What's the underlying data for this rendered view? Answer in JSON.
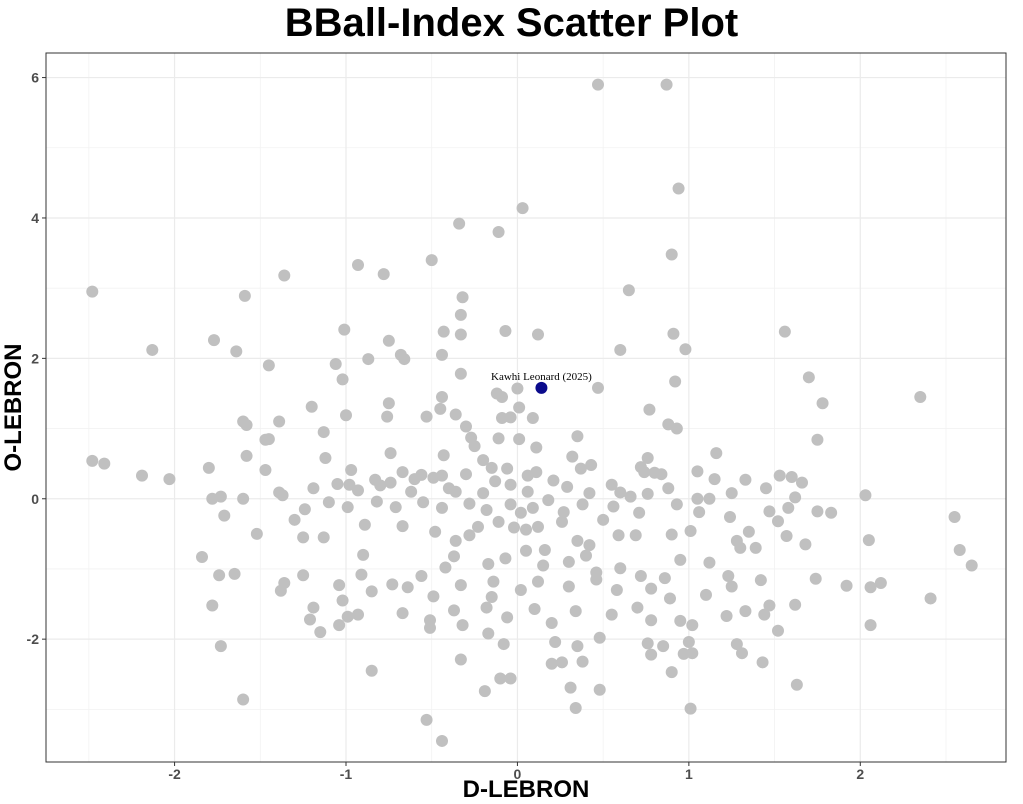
{
  "chart_data": {
    "type": "scatter",
    "title": "BBall-Index Scatter Plot",
    "xlabel": "D-LEBRON",
    "ylabel": "O-LEBRON",
    "xlim": [
      -2.75,
      2.85
    ],
    "ylim": [
      -3.75,
      6.35
    ],
    "xticks": [
      -2,
      -1,
      0,
      1,
      2
    ],
    "yticks": [
      -2,
      0,
      2,
      4,
      6
    ],
    "grid": true,
    "colors": {
      "points": "#c0c0c0",
      "highlight": "#0b0b8c",
      "grid": "#ebebeb",
      "panel_border": "#333333"
    },
    "highlight": {
      "label": "Kawhi Leonard (2025)",
      "x": 0.14,
      "y": 1.58
    },
    "points": [
      [
        0.47,
        5.9
      ],
      [
        0.87,
        5.9
      ],
      [
        0.94,
        4.42
      ],
      [
        0.03,
        4.14
      ],
      [
        -0.34,
        3.92
      ],
      [
        -0.11,
        3.8
      ],
      [
        0.9,
        3.48
      ],
      [
        -0.5,
        3.4
      ],
      [
        -0.93,
        3.33
      ],
      [
        -1.36,
        3.18
      ],
      [
        -0.78,
        3.2
      ],
      [
        -2.48,
        2.95
      ],
      [
        -1.59,
        2.89
      ],
      [
        0.65,
        2.97
      ],
      [
        -0.32,
        2.87
      ],
      [
        -0.33,
        2.62
      ],
      [
        -1.77,
        2.26
      ],
      [
        -2.13,
        2.12
      ],
      [
        -1.64,
        2.1
      ],
      [
        -1.01,
        2.41
      ],
      [
        -0.43,
        2.38
      ],
      [
        -0.33,
        2.34
      ],
      [
        -0.07,
        2.39
      ],
      [
        0.12,
        2.34
      ],
      [
        0.91,
        2.35
      ],
      [
        1.56,
        2.38
      ],
      [
        -0.75,
        2.25
      ],
      [
        -0.68,
        2.05
      ],
      [
        -0.66,
        1.99
      ],
      [
        -0.44,
        2.05
      ],
      [
        -0.87,
        1.99
      ],
      [
        -1.06,
        1.92
      ],
      [
        -1.45,
        1.9
      ],
      [
        0.6,
        2.12
      ],
      [
        0.98,
        2.13
      ],
      [
        -0.33,
        1.78
      ],
      [
        -1.02,
        1.7
      ],
      [
        -0.12,
        1.5
      ],
      [
        -0.09,
        1.45
      ],
      [
        0.0,
        1.57
      ],
      [
        0.47,
        1.58
      ],
      [
        0.92,
        1.67
      ],
      [
        1.7,
        1.73
      ],
      [
        1.78,
        1.36
      ],
      [
        2.35,
        1.45
      ],
      [
        -0.44,
        1.45
      ],
      [
        -0.45,
        1.28
      ],
      [
        -0.36,
        1.2
      ],
      [
        -0.75,
        1.36
      ],
      [
        -1.2,
        1.31
      ],
      [
        -0.53,
        1.17
      ],
      [
        -0.76,
        1.17
      ],
      [
        -1.0,
        1.19
      ],
      [
        -1.39,
        1.1
      ],
      [
        -1.6,
        1.1
      ],
      [
        -1.58,
        1.05
      ],
      [
        -0.09,
        1.15
      ],
      [
        -0.04,
        1.16
      ],
      [
        0.01,
        1.3
      ],
      [
        0.09,
        1.15
      ],
      [
        0.77,
        1.27
      ],
      [
        0.88,
        1.06
      ],
      [
        0.93,
        1.0
      ],
      [
        0.35,
        0.89
      ],
      [
        -1.47,
        0.84
      ],
      [
        -1.45,
        0.85
      ],
      [
        -1.13,
        0.95
      ],
      [
        -0.3,
        1.03
      ],
      [
        -0.27,
        0.87
      ],
      [
        -0.25,
        0.75
      ],
      [
        -0.11,
        0.86
      ],
      [
        0.01,
        0.85
      ],
      [
        0.11,
        0.73
      ],
      [
        1.75,
        0.84
      ],
      [
        -0.43,
        0.62
      ],
      [
        -1.58,
        0.61
      ],
      [
        -1.12,
        0.58
      ],
      [
        -0.74,
        0.65
      ],
      [
        0.76,
        0.58
      ],
      [
        1.16,
        0.65
      ],
      [
        -2.48,
        0.54
      ],
      [
        -2.41,
        0.5
      ],
      [
        -2.19,
        0.33
      ],
      [
        -2.03,
        0.28
      ],
      [
        -1.8,
        0.44
      ],
      [
        -1.47,
        0.41
      ],
      [
        -0.97,
        0.41
      ],
      [
        -0.67,
        0.38
      ],
      [
        -0.56,
        0.34
      ],
      [
        -0.49,
        0.3
      ],
      [
        -0.44,
        0.33
      ],
      [
        -0.3,
        0.35
      ],
      [
        -0.15,
        0.44
      ],
      [
        -0.06,
        0.43
      ],
      [
        0.06,
        0.33
      ],
      [
        0.11,
        0.38
      ],
      [
        0.37,
        0.43
      ],
      [
        0.43,
        0.48
      ],
      [
        0.72,
        0.45
      ],
      [
        0.74,
        0.38
      ],
      [
        0.8,
        0.37
      ],
      [
        0.84,
        0.35
      ],
      [
        1.05,
        0.39
      ],
      [
        1.15,
        0.28
      ],
      [
        1.33,
        0.27
      ],
      [
        1.53,
        0.33
      ],
      [
        1.6,
        0.31
      ],
      [
        1.66,
        0.23
      ],
      [
        -1.78,
        0.0
      ],
      [
        -1.73,
        0.03
      ],
      [
        -1.39,
        0.09
      ],
      [
        -1.19,
        0.15
      ],
      [
        -1.05,
        0.21
      ],
      [
        -0.98,
        0.2
      ],
      [
        -0.93,
        0.12
      ],
      [
        -0.83,
        0.27
      ],
      [
        -0.8,
        0.19
      ],
      [
        -0.74,
        0.23
      ],
      [
        -0.6,
        0.28
      ],
      [
        -0.4,
        0.15
      ],
      [
        -0.36,
        0.1
      ],
      [
        -0.2,
        0.08
      ],
      [
        -0.13,
        0.25
      ],
      [
        -0.04,
        0.2
      ],
      [
        0.06,
        0.1
      ],
      [
        0.21,
        0.26
      ],
      [
        0.29,
        0.17
      ],
      [
        0.42,
        0.08
      ],
      [
        0.6,
        0.09
      ],
      [
        0.66,
        0.03
      ],
      [
        0.76,
        0.07
      ],
      [
        0.88,
        0.15
      ],
      [
        1.12,
        0.0
      ],
      [
        1.25,
        0.08
      ],
      [
        1.62,
        0.02
      ],
      [
        1.75,
        -0.18
      ],
      [
        1.83,
        -0.2
      ],
      [
        2.03,
        0.05
      ],
      [
        -1.6,
        0.0
      ],
      [
        -1.24,
        -0.15
      ],
      [
        -1.1,
        -0.05
      ],
      [
        -0.99,
        -0.12
      ],
      [
        -0.82,
        -0.04
      ],
      [
        -0.71,
        -0.12
      ],
      [
        -0.55,
        -0.05
      ],
      [
        -0.44,
        -0.13
      ],
      [
        -0.28,
        -0.07
      ],
      [
        -0.18,
        -0.16
      ],
      [
        -0.04,
        -0.08
      ],
      [
        0.02,
        -0.2
      ],
      [
        0.09,
        -0.13
      ],
      [
        0.18,
        -0.02
      ],
      [
        0.27,
        -0.19
      ],
      [
        0.38,
        -0.08
      ],
      [
        0.56,
        -0.11
      ],
      [
        0.71,
        -0.2
      ],
      [
        0.93,
        -0.08
      ],
      [
        1.06,
        -0.19
      ],
      [
        1.24,
        -0.26
      ],
      [
        1.47,
        -0.18
      ],
      [
        1.52,
        -0.32
      ],
      [
        1.58,
        -0.13
      ],
      [
        2.55,
        -0.26
      ],
      [
        -1.71,
        -0.24
      ],
      [
        -1.52,
        -0.5
      ],
      [
        -1.25,
        -0.55
      ],
      [
        -1.13,
        -0.55
      ],
      [
        -0.89,
        -0.37
      ],
      [
        -0.67,
        -0.39
      ],
      [
        -0.48,
        -0.47
      ],
      [
        -0.36,
        -0.6
      ],
      [
        -0.23,
        -0.4
      ],
      [
        -0.11,
        -0.33
      ],
      [
        -0.02,
        -0.41
      ],
      [
        0.05,
        -0.44
      ],
      [
        0.12,
        -0.4
      ],
      [
        0.26,
        -0.33
      ],
      [
        0.35,
        -0.6
      ],
      [
        0.42,
        -0.66
      ],
      [
        0.59,
        -0.52
      ],
      [
        0.69,
        -0.52
      ],
      [
        0.9,
        -0.51
      ],
      [
        1.01,
        -0.46
      ],
      [
        1.28,
        -0.6
      ],
      [
        1.35,
        -0.47
      ],
      [
        1.57,
        -0.53
      ],
      [
        1.68,
        -0.65
      ],
      [
        2.05,
        -0.59
      ],
      [
        2.58,
        -0.73
      ],
      [
        2.65,
        -0.95
      ],
      [
        -1.84,
        -0.83
      ],
      [
        -1.65,
        -1.07
      ],
      [
        -1.36,
        -1.2
      ],
      [
        -1.25,
        -1.09
      ],
      [
        -1.04,
        -1.23
      ],
      [
        -0.91,
        -1.08
      ],
      [
        -0.73,
        -1.22
      ],
      [
        -0.56,
        -1.1
      ],
      [
        -0.42,
        -0.98
      ],
      [
        -0.37,
        -0.82
      ],
      [
        -0.17,
        -0.93
      ],
      [
        -0.07,
        -0.85
      ],
      [
        0.05,
        -0.74
      ],
      [
        0.16,
        -0.73
      ],
      [
        0.3,
        -0.9
      ],
      [
        0.4,
        -0.81
      ],
      [
        0.46,
        -1.05
      ],
      [
        0.6,
        -0.99
      ],
      [
        0.72,
        -1.1
      ],
      [
        0.86,
        -1.13
      ],
      [
        0.95,
        -0.87
      ],
      [
        1.12,
        -0.91
      ],
      [
        1.23,
        -1.1
      ],
      [
        1.39,
        -0.7
      ],
      [
        1.42,
        -1.16
      ],
      [
        1.74,
        -1.14
      ],
      [
        1.92,
        -1.24
      ],
      [
        -1.74,
        -1.09
      ],
      [
        -1.78,
        -1.52
      ],
      [
        -1.38,
        -1.31
      ],
      [
        -1.19,
        -1.55
      ],
      [
        -1.02,
        -1.45
      ],
      [
        -0.85,
        -1.32
      ],
      [
        -0.64,
        -1.26
      ],
      [
        -0.49,
        -1.39
      ],
      [
        -0.33,
        -1.23
      ],
      [
        -0.14,
        -1.18
      ],
      [
        0.02,
        -1.3
      ],
      [
        0.12,
        -1.18
      ],
      [
        0.3,
        -1.25
      ],
      [
        0.46,
        -1.15
      ],
      [
        0.58,
        -1.3
      ],
      [
        0.78,
        -1.28
      ],
      [
        0.89,
        -1.42
      ],
      [
        1.1,
        -1.37
      ],
      [
        1.25,
        -1.25
      ],
      [
        1.47,
        -1.52
      ],
      [
        1.62,
        -1.51
      ],
      [
        2.06,
        -1.26
      ],
      [
        2.12,
        -1.2
      ],
      [
        2.41,
        -1.42
      ],
      [
        -1.21,
        -1.72
      ],
      [
        -1.04,
        -1.8
      ],
      [
        -0.99,
        -1.68
      ],
      [
        -0.67,
        -1.63
      ],
      [
        -0.51,
        -1.73
      ],
      [
        -0.37,
        -1.59
      ],
      [
        -0.18,
        -1.55
      ],
      [
        -0.06,
        -1.69
      ],
      [
        0.1,
        -1.57
      ],
      [
        0.2,
        -1.77
      ],
      [
        0.34,
        -1.6
      ],
      [
        0.55,
        -1.65
      ],
      [
        0.78,
        -1.73
      ],
      [
        0.95,
        -1.74
      ],
      [
        1.02,
        -1.8
      ],
      [
        1.22,
        -1.67
      ],
      [
        1.33,
        -1.6
      ],
      [
        1.44,
        -1.65
      ],
      [
        2.06,
        -1.8
      ],
      [
        -1.73,
        -2.1
      ],
      [
        -1.15,
        -1.9
      ],
      [
        -0.93,
        -1.65
      ],
      [
        -0.51,
        -1.84
      ],
      [
        -0.32,
        -1.8
      ],
      [
        -0.17,
        -1.92
      ],
      [
        -0.08,
        -2.07
      ],
      [
        0.22,
        -2.04
      ],
      [
        0.35,
        -2.1
      ],
      [
        0.48,
        -1.98
      ],
      [
        0.76,
        -2.06
      ],
      [
        0.85,
        -2.1
      ],
      [
        1.0,
        -2.04
      ],
      [
        1.28,
        -2.07
      ],
      [
        1.52,
        -1.88
      ],
      [
        -0.33,
        -2.29
      ],
      [
        0.26,
        -2.33
      ],
      [
        0.38,
        -2.32
      ],
      [
        0.78,
        -2.22
      ],
      [
        0.97,
        -2.21
      ],
      [
        1.02,
        -2.2
      ],
      [
        1.31,
        -2.2
      ],
      [
        1.43,
        -2.33
      ],
      [
        -0.85,
        -2.45
      ],
      [
        -0.1,
        -2.56
      ],
      [
        -0.04,
        -2.56
      ],
      [
        0.9,
        -2.47
      ],
      [
        1.63,
        -2.65
      ],
      [
        -1.6,
        -2.86
      ],
      [
        -0.19,
        -2.74
      ],
      [
        0.31,
        -2.69
      ],
      [
        0.48,
        -2.72
      ],
      [
        0.34,
        -2.98
      ],
      [
        1.01,
        -2.99
      ],
      [
        -0.53,
        -3.15
      ],
      [
        -0.44,
        -3.45
      ],
      [
        0.2,
        -2.35
      ],
      [
        -1.37,
        0.05
      ],
      [
        -0.28,
        -0.52
      ],
      [
        0.5,
        -0.3
      ],
      [
        -0.62,
        0.1
      ],
      [
        0.15,
        -0.95
      ],
      [
        1.3,
        -0.7
      ],
      [
        -0.2,
        0.55
      ],
      [
        0.7,
        -1.55
      ],
      [
        -0.9,
        -0.8
      ],
      [
        0.32,
        0.6
      ],
      [
        1.05,
        0.0
      ],
      [
        -0.15,
        -1.4
      ],
      [
        0.55,
        0.2
      ],
      [
        -1.3,
        -0.3
      ],
      [
        1.45,
        0.15
      ]
    ]
  }
}
